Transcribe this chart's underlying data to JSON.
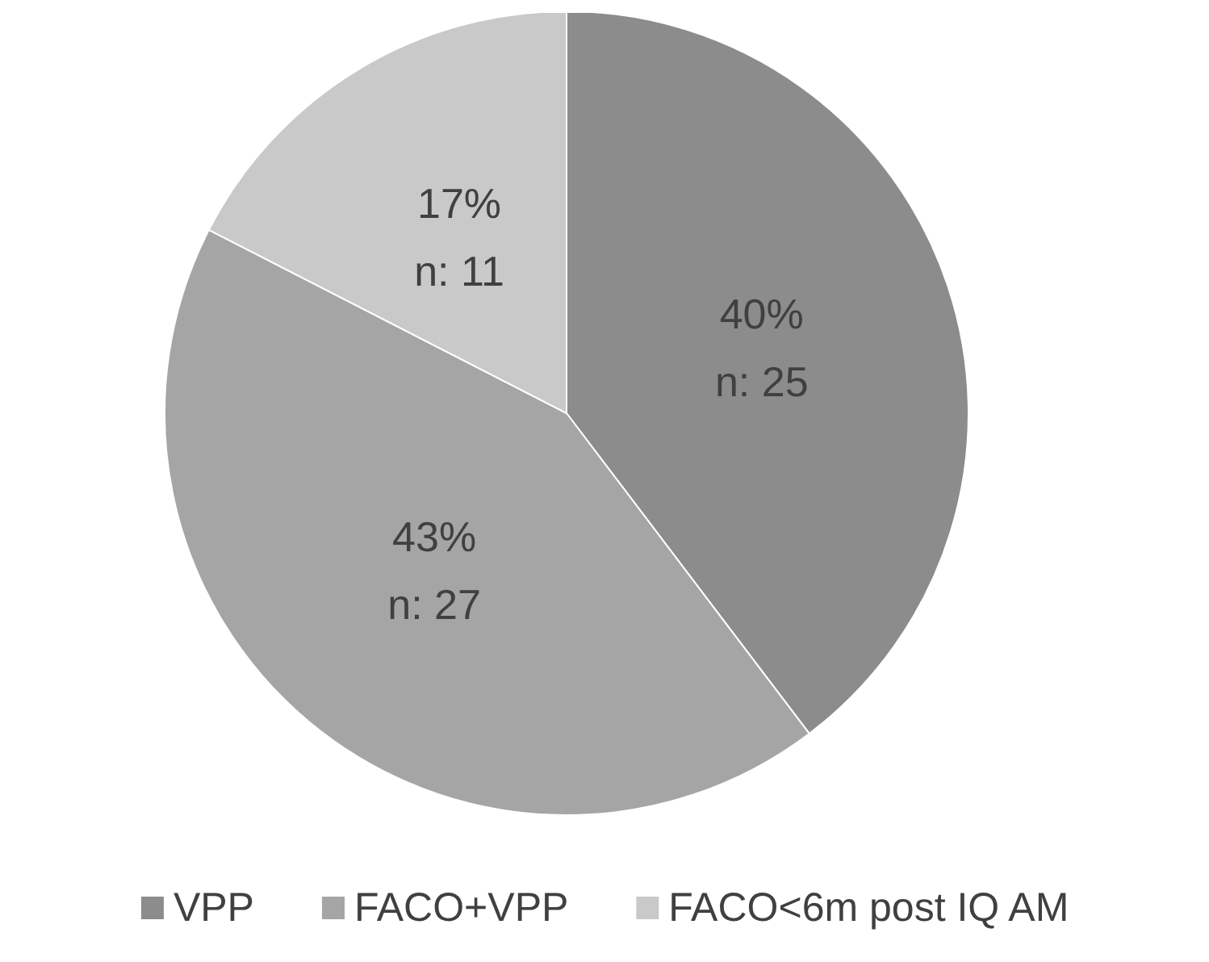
{
  "chart_data": {
    "type": "pie",
    "categories": [
      "VPP",
      "FACO+VPP",
      "FACO<6m post IQ AM"
    ],
    "values": [
      25,
      27,
      11
    ],
    "colors": [
      "#8c8c8c",
      "#a5a5a5",
      "#c9c9c9"
    ],
    "value_labels": [
      "40%\nn: 25",
      "43%\nn: 27",
      "17%\nn: 11"
    ],
    "legend": "bottom"
  }
}
